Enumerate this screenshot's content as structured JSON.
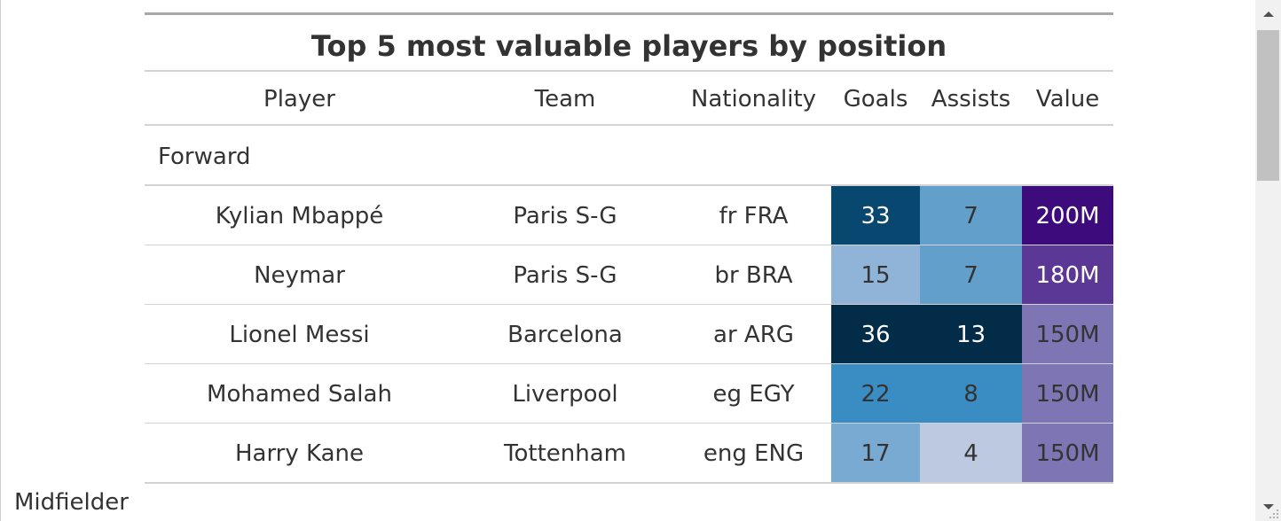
{
  "table": {
    "title": "Top 5 most valuable players by position",
    "columns": [
      "Player",
      "Team",
      "Nationality",
      "Goals",
      "Assists",
      "Value"
    ],
    "groups": [
      {
        "label": "Forward",
        "rows": [
          {
            "player": "Kylian Mbappé",
            "team": "Paris S-G",
            "nationality": "fr FRA",
            "goals": "33",
            "assists": "7",
            "value": "200M"
          },
          {
            "player": "Neymar",
            "team": "Paris S-G",
            "nationality": "br BRA",
            "goals": "15",
            "assists": "7",
            "value": "180M"
          },
          {
            "player": "Lionel Messi",
            "team": "Barcelona",
            "nationality": "ar ARG",
            "goals": "36",
            "assists": "13",
            "value": "150M"
          },
          {
            "player": "Mohamed Salah",
            "team": "Liverpool",
            "nationality": "eg EGY",
            "goals": "22",
            "assists": "8",
            "value": "150M"
          },
          {
            "player": "Harry Kane",
            "team": "Tottenham",
            "nationality": "eng ENG",
            "goals": "17",
            "assists": "4",
            "value": "150M"
          }
        ]
      },
      {
        "label": "Midfielder",
        "rows": []
      }
    ]
  },
  "colors": {
    "goals": [
      "#08476f",
      "#8fb4d8",
      "#032c48",
      "#3a8dc2",
      "#79aad1"
    ],
    "assists": [
      "#62a0cb",
      "#62a0cb",
      "#032c48",
      "#3a8dc2",
      "#bdc9e1"
    ],
    "value": [
      "#3e0b7d",
      "#5b3796",
      "#7e76b4",
      "#7e76b4",
      "#7e76b4"
    ],
    "goals_text": [
      "#ffffff",
      "#333333",
      "#ffffff",
      "#333333",
      "#333333"
    ],
    "assists_text": [
      "#333333",
      "#333333",
      "#ffffff",
      "#333333",
      "#333333"
    ],
    "value_text": [
      "#ffffff",
      "#ffffff",
      "#333333",
      "#333333",
      "#333333"
    ]
  },
  "scrollbar": {
    "up_icon": "arrow-up-icon",
    "down_icon": "arrow-down-icon"
  }
}
